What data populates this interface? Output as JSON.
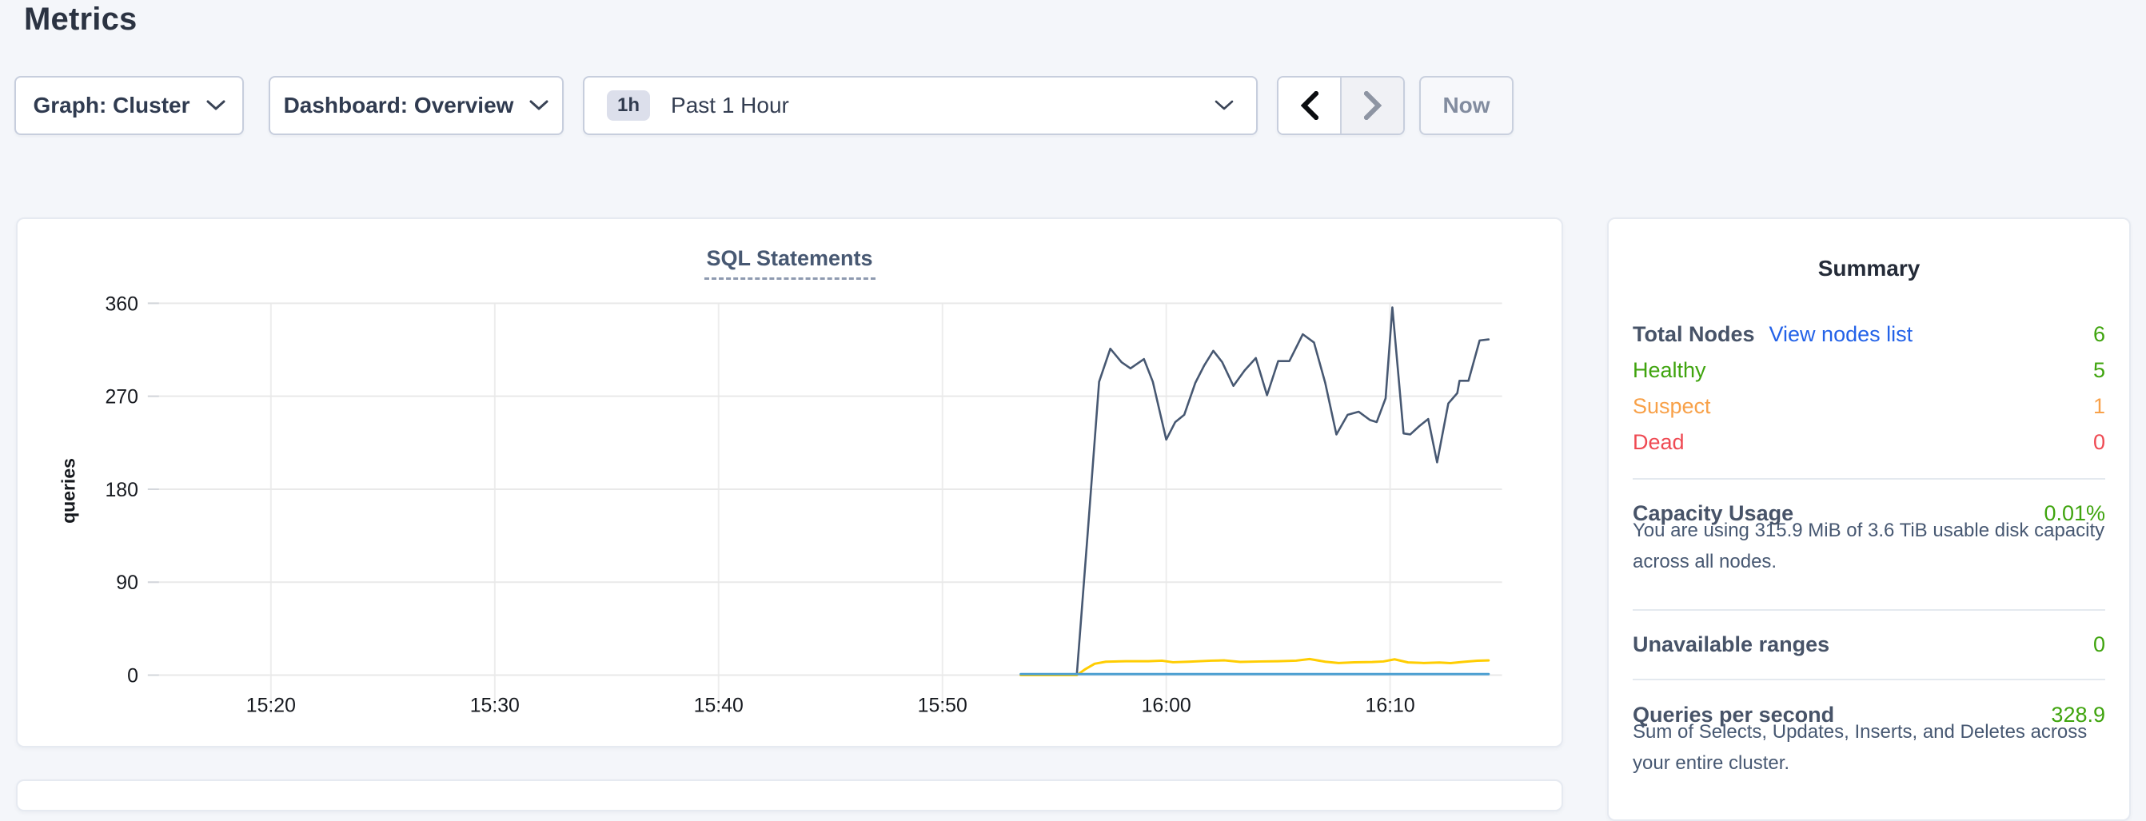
{
  "page": {
    "title": "Metrics"
  },
  "toolbar": {
    "graph_label": "Graph: Cluster",
    "dashboard_label": "Dashboard: Overview",
    "time_badge": "1h",
    "time_label": "Past 1 Hour",
    "now_label": "Now",
    "icons": [
      "chevron-down-icon",
      "chevron-left-icon",
      "chevron-right-icon"
    ]
  },
  "colors": {
    "page_background": "#f4f6fa",
    "link_blue": "#2362e8",
    "healthy_green": "#3fa40e",
    "suspect_orange": "#f8a149",
    "dead_red": "#ef4a53",
    "series_navy": "#475872",
    "series_yellow": "#ffcd02",
    "series_blue": "#4c9fd2"
  },
  "chart_data": {
    "type": "line",
    "title": "SQL Statements",
    "ylabel": "queries",
    "ylim": [
      0,
      360
    ],
    "yticks": [
      0,
      90,
      180,
      270,
      360
    ],
    "x_domain": [
      14.5,
      75
    ],
    "x_unit": "minutes after 15:00",
    "grid": true,
    "legend": "none",
    "xticks": [
      {
        "t": 20,
        "label": "15:20"
      },
      {
        "t": 30,
        "label": "15:30"
      },
      {
        "t": 40,
        "label": "15:40"
      },
      {
        "t": 50,
        "label": "15:50"
      },
      {
        "t": 60,
        "label": "16:00"
      },
      {
        "t": 70,
        "label": "16:10"
      }
    ],
    "series": [
      {
        "name": "series-navy",
        "color": "#475872",
        "width": 2.6,
        "points": [
          [
            53.5,
            0
          ],
          [
            54.3,
            0
          ],
          [
            55.2,
            0
          ],
          [
            56.0,
            0
          ],
          [
            56.5,
            140
          ],
          [
            57.0,
            284
          ],
          [
            57.5,
            316
          ],
          [
            58.0,
            303
          ],
          [
            58.4,
            297
          ],
          [
            59.0,
            306
          ],
          [
            59.4,
            284
          ],
          [
            60.0,
            228
          ],
          [
            60.4,
            245
          ],
          [
            60.8,
            252
          ],
          [
            61.3,
            283
          ],
          [
            61.7,
            300
          ],
          [
            62.1,
            314
          ],
          [
            62.5,
            303
          ],
          [
            63.0,
            280
          ],
          [
            63.5,
            295
          ],
          [
            64.0,
            307
          ],
          [
            64.5,
            271
          ],
          [
            65.0,
            304
          ],
          [
            65.5,
            304
          ],
          [
            66.1,
            330
          ],
          [
            66.6,
            322
          ],
          [
            67.1,
            283
          ],
          [
            67.6,
            233
          ],
          [
            68.1,
            252
          ],
          [
            68.6,
            255
          ],
          [
            69.1,
            247
          ],
          [
            69.4,
            245
          ],
          [
            69.8,
            268
          ],
          [
            70.1,
            356
          ],
          [
            70.6,
            234
          ],
          [
            70.9,
            233
          ],
          [
            71.3,
            241
          ],
          [
            71.7,
            248
          ],
          [
            72.1,
            206
          ],
          [
            72.6,
            263
          ],
          [
            73.0,
            273
          ],
          [
            73.1,
            285
          ],
          [
            73.5,
            285
          ],
          [
            74.0,
            324
          ],
          [
            74.4,
            325
          ]
        ]
      },
      {
        "name": "series-yellow",
        "color": "#ffcd02",
        "width": 3,
        "points": [
          [
            53.5,
            0
          ],
          [
            54.5,
            0
          ],
          [
            55.5,
            0
          ],
          [
            56.0,
            0
          ],
          [
            56.4,
            6
          ],
          [
            56.8,
            11
          ],
          [
            57.3,
            13
          ],
          [
            58.2,
            13.5
          ],
          [
            59.2,
            13.5
          ],
          [
            59.8,
            14
          ],
          [
            60.3,
            12.5
          ],
          [
            61.0,
            13
          ],
          [
            62.0,
            14
          ],
          [
            62.6,
            14.3
          ],
          [
            63.3,
            12.8
          ],
          [
            64.2,
            13.2
          ],
          [
            65.0,
            13.5
          ],
          [
            65.8,
            14
          ],
          [
            66.4,
            15.6
          ],
          [
            67.1,
            13
          ],
          [
            67.7,
            11.8
          ],
          [
            68.4,
            12.4
          ],
          [
            69.2,
            12.7
          ],
          [
            69.7,
            13.2
          ],
          [
            70.2,
            15.3
          ],
          [
            70.8,
            12.3
          ],
          [
            71.5,
            11.8
          ],
          [
            72.2,
            12.2
          ],
          [
            72.7,
            11.6
          ],
          [
            73.3,
            12.9
          ],
          [
            73.9,
            13.9
          ],
          [
            74.4,
            14.2
          ]
        ]
      },
      {
        "name": "series-blue",
        "color": "#4c9fd2",
        "width": 3,
        "points": [
          [
            53.5,
            1
          ],
          [
            74.4,
            1
          ]
        ]
      }
    ]
  },
  "summary": {
    "title": "Summary",
    "total_nodes": {
      "label": "Total Nodes",
      "link": "View nodes list",
      "value": "6"
    },
    "healthy": {
      "label": "Healthy",
      "value": "5"
    },
    "suspect": {
      "label": "Suspect",
      "value": "1"
    },
    "dead": {
      "label": "Dead",
      "value": "0"
    },
    "capacity": {
      "label": "Capacity Usage",
      "value": "0.01%",
      "description": "You are using 315.9 MiB of 3.6 TiB usable disk capacity across all nodes."
    },
    "unavailable_ranges": {
      "label": "Unavailable ranges",
      "value": "0"
    },
    "qps": {
      "label": "Queries per second",
      "value": "328.9",
      "description": "Sum of Selects, Updates, Inserts, and Deletes across your entire cluster."
    }
  }
}
